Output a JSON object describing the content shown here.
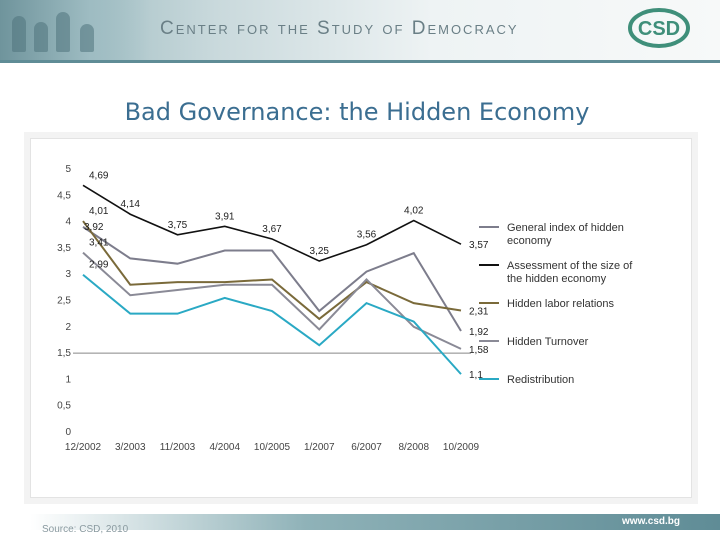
{
  "header": {
    "title": "Center for the Study of Democracy",
    "logo_text": "CSD"
  },
  "slide_title": "Bad Governance: the Hidden Economy",
  "footer": {
    "source": "Source: CSD, 2010",
    "url": "www.csd.bg"
  },
  "colors": {
    "header_accent": "#5f8c96",
    "title": "#3b6e91",
    "logo": "#3f8f7a"
  },
  "chart_data": {
    "type": "line",
    "categories": [
      "12/2002",
      "3/2003",
      "11/2003",
      "4/2004",
      "10/2005",
      "1/2007",
      "6/2007",
      "8/2008",
      "10/2009"
    ],
    "ylim": [
      0,
      5
    ],
    "yticks": [
      "0",
      "0,5",
      "1",
      "1,5",
      "2",
      "2,5",
      "3",
      "3,5",
      "4",
      "4,5",
      "5"
    ],
    "reference_line": 1.5,
    "legend_position": "right",
    "series": [
      {
        "name": "General index of hidden economy",
        "color": "#7d7d8c",
        "values": [
          3.9,
          3.3,
          3.2,
          3.45,
          3.45,
          2.3,
          3.05,
          3.4,
          1.92
        ],
        "labels": [
          "",
          "",
          "",
          "",
          "",
          "",
          "",
          "",
          "1,92"
        ]
      },
      {
        "name": "Assessment of the size of the hidden economy",
        "color": "#111111",
        "values": [
          4.69,
          4.14,
          3.75,
          3.91,
          3.67,
          3.25,
          3.56,
          4.02,
          3.57
        ],
        "labels": [
          "4,69",
          "4,14",
          "3,75",
          "3,91",
          "3,67",
          "3,25",
          "3,56",
          "4,02",
          "3,57"
        ]
      },
      {
        "name": "Hidden labor relations",
        "color": "#7a6a3a",
        "values": [
          4.01,
          2.8,
          2.85,
          2.85,
          2.9,
          2.15,
          2.85,
          2.45,
          2.31
        ],
        "labels": [
          "4,01",
          "",
          "",
          "",
          "",
          "",
          "",
          "",
          "2,31"
        ]
      },
      {
        "name": "Hidden Turnover",
        "color": "#8a8a96",
        "values": [
          3.41,
          2.6,
          2.7,
          2.8,
          2.8,
          1.95,
          2.9,
          2.0,
          1.58
        ],
        "labels": [
          "3,41",
          "",
          "",
          "",
          "",
          "",
          "",
          "",
          "1,58"
        ]
      },
      {
        "name": "Redistribution",
        "color": "#2aa9c4",
        "values": [
          2.99,
          2.25,
          2.25,
          2.55,
          2.3,
          1.65,
          2.45,
          2.1,
          1.1
        ],
        "labels": [
          "2,99",
          "",
          "",
          "",
          "",
          "",
          "",
          "",
          "1,1"
        ]
      }
    ],
    "extra_labels": [
      "3,92"
    ]
  }
}
